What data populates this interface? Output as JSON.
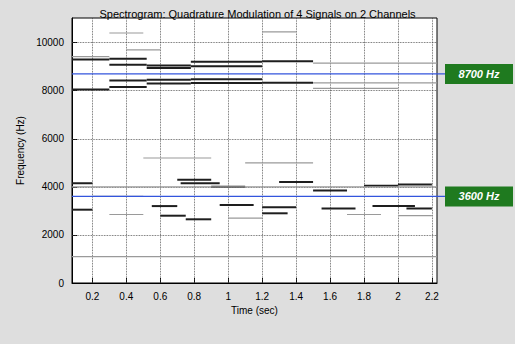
{
  "chart_data": {
    "type": "spectrogram",
    "title": "Spectrogram: Quadrature Modulation of 4 Signals on 2 Channels",
    "x_label": "Time (sec)",
    "y_label": "Frequency (Hz)",
    "xlim": [
      0.08,
      2.23
    ],
    "xticks": [
      0.2,
      0.4,
      0.6,
      0.8,
      1,
      1.2,
      1.4,
      1.6,
      1.8,
      2,
      2.2
    ],
    "ylim": [
      0,
      11025
    ],
    "yticks": [
      0,
      2000,
      4000,
      6000,
      8000,
      10000
    ],
    "grid": true,
    "series": [
      {
        "color": "#1e1e1e",
        "values": [
          [
            0.08,
            0.3,
            9300
          ],
          [
            0.08,
            0.3,
            8050
          ],
          [
            0.3,
            0.52,
            9330
          ],
          [
            0.3,
            0.52,
            9080
          ],
          [
            0.3,
            0.52,
            8420
          ],
          [
            0.3,
            0.52,
            8150
          ],
          [
            0.52,
            0.78,
            9050
          ],
          [
            0.52,
            0.78,
            8950
          ],
          [
            0.52,
            0.78,
            8460
          ],
          [
            0.52,
            0.78,
            8300
          ],
          [
            0.78,
            1.2,
            9200
          ],
          [
            0.78,
            1.2,
            9020
          ],
          [
            0.78,
            1.2,
            8480
          ],
          [
            0.78,
            1.2,
            8320
          ],
          [
            1.2,
            1.5,
            9230
          ],
          [
            1.2,
            1.5,
            8330
          ],
          [
            0.08,
            0.2,
            4150
          ],
          [
            0.08,
            0.2,
            3050
          ],
          [
            0.55,
            0.7,
            3200
          ],
          [
            0.6,
            0.75,
            2800
          ],
          [
            0.7,
            0.9,
            4300
          ],
          [
            0.72,
            0.95,
            4150
          ],
          [
            0.75,
            0.9,
            2650
          ],
          [
            0.9,
            1.1,
            4000
          ],
          [
            0.95,
            1.15,
            3250
          ],
          [
            1.2,
            1.35,
            2900
          ],
          [
            1.2,
            1.4,
            3150
          ],
          [
            1.3,
            1.5,
            4200
          ],
          [
            1.5,
            1.7,
            3850
          ],
          [
            1.55,
            1.75,
            3100
          ],
          [
            1.8,
            2.0,
            4050
          ],
          [
            1.85,
            2.1,
            3200
          ],
          [
            2.0,
            2.2,
            4100
          ],
          [
            2.05,
            2.2,
            3100
          ]
        ]
      },
      {
        "color": "#9a9a9a",
        "values": [
          [
            1.5,
            2.23,
            9150
          ],
          [
            1.5,
            2.23,
            8330
          ],
          [
            1.5,
            2.0,
            8100
          ],
          [
            0.08,
            0.3,
            9420
          ],
          [
            0.3,
            0.5,
            10400
          ],
          [
            1.2,
            1.4,
            10450
          ],
          [
            0.4,
            0.6,
            9700
          ],
          [
            0.08,
            2.23,
            4000
          ],
          [
            0.2,
            0.5,
            3600
          ],
          [
            0.3,
            0.5,
            2850
          ],
          [
            1.0,
            1.2,
            2700
          ],
          [
            1.7,
            1.9,
            2850
          ],
          [
            0.08,
            2.23,
            1100
          ],
          [
            0.5,
            0.9,
            5200
          ],
          [
            1.1,
            1.5,
            5000
          ],
          [
            2.0,
            2.2,
            2800
          ]
        ]
      }
    ],
    "annotations": [
      {
        "value": 8700,
        "label": "8700 Hz",
        "color": "#1f7a1f"
      },
      {
        "value": 3600,
        "label": "3600 Hz",
        "color": "#1f7a1f"
      }
    ],
    "annotation_line_color": "#3355dd"
  }
}
